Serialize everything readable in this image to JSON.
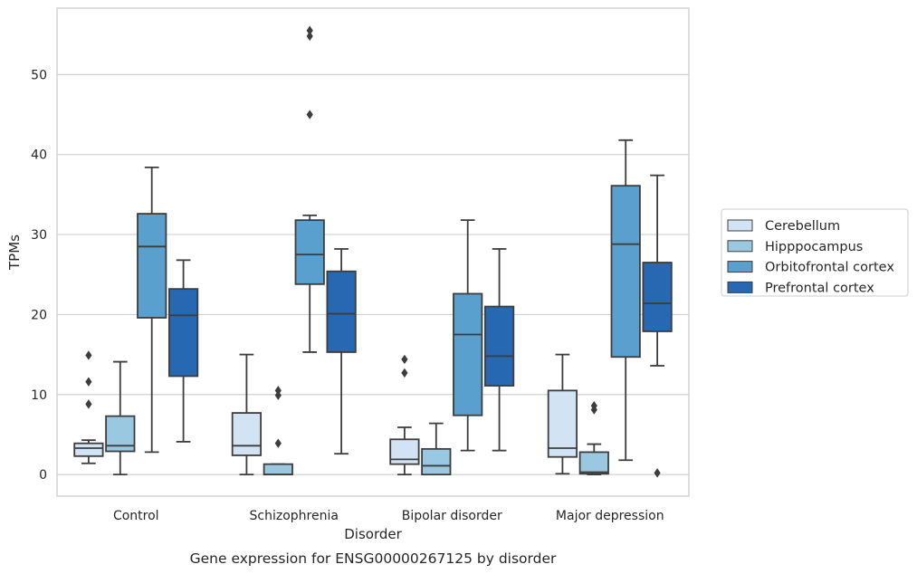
{
  "chart_data": {
    "type": "box",
    "caption": "Gene expression for ENSG00000267125 by disorder",
    "xlabel": "Disorder",
    "ylabel": "TPMs",
    "ylim": [
      -2.7,
      58.3
    ],
    "yticks": [
      0,
      10,
      20,
      30,
      40,
      50
    ],
    "grid": true,
    "legend_position": "right",
    "categories": [
      "Control",
      "Schizophrenia",
      "Bipolar disorder",
      "Major depression"
    ],
    "series": [
      {
        "name": "Cerebellum",
        "color": "#d2e3f3",
        "boxes": [
          {
            "whislo": 1.4,
            "q1": 2.3,
            "med": 3.3,
            "q3": 3.9,
            "whishi": 4.3,
            "fliers": [
              8.8,
              11.6,
              14.9
            ]
          },
          {
            "whislo": 0.0,
            "q1": 2.4,
            "med": 3.6,
            "q3": 7.7,
            "whishi": 15.0,
            "fliers": []
          },
          {
            "whislo": 0.0,
            "q1": 1.3,
            "med": 1.9,
            "q3": 4.4,
            "whishi": 5.9,
            "fliers": [
              12.7,
              14.4
            ]
          },
          {
            "whislo": 0.1,
            "q1": 2.2,
            "med": 3.3,
            "q3": 10.5,
            "whishi": 15.0,
            "fliers": []
          }
        ]
      },
      {
        "name": "Hipppocampus",
        "color": "#9ac8e0",
        "boxes": [
          {
            "whislo": 0.0,
            "q1": 2.9,
            "med": 3.6,
            "q3": 7.3,
            "whishi": 14.1,
            "fliers": []
          },
          {
            "whislo": 0.0,
            "q1": 0.0,
            "med": 0.0,
            "q3": 1.3,
            "whishi": 1.3,
            "fliers": [
              3.9,
              9.9,
              10.5
            ]
          },
          {
            "whislo": 0.0,
            "q1": 0.0,
            "med": 1.1,
            "q3": 3.2,
            "whishi": 6.4,
            "fliers": []
          },
          {
            "whislo": 0.0,
            "q1": 0.1,
            "med": 0.3,
            "q3": 2.8,
            "whishi": 3.8,
            "fliers": [
              8.1,
              8.6
            ]
          }
        ]
      },
      {
        "name": "Orbitofrontal cortex",
        "color": "#5aa0ce",
        "boxes": [
          {
            "whislo": 2.8,
            "q1": 19.6,
            "med": 28.5,
            "q3": 32.6,
            "whishi": 38.4,
            "fliers": []
          },
          {
            "whislo": 15.3,
            "q1": 23.8,
            "med": 27.5,
            "q3": 31.8,
            "whishi": 32.4,
            "fliers": [
              45.0,
              54.8,
              55.5
            ]
          },
          {
            "whislo": 3.0,
            "q1": 7.4,
            "med": 17.5,
            "q3": 22.6,
            "whishi": 31.8,
            "fliers": []
          },
          {
            "whislo": 1.8,
            "q1": 14.7,
            "med": 28.8,
            "q3": 36.1,
            "whishi": 41.8,
            "fliers": []
          }
        ]
      },
      {
        "name": "Prefrontal cortex",
        "color": "#2668b1",
        "boxes": [
          {
            "whislo": 4.1,
            "q1": 12.3,
            "med": 19.9,
            "q3": 23.2,
            "whishi": 26.8,
            "fliers": []
          },
          {
            "whislo": 2.6,
            "q1": 15.3,
            "med": 20.1,
            "q3": 25.4,
            "whishi": 28.2,
            "fliers": []
          },
          {
            "whislo": 3.0,
            "q1": 11.1,
            "med": 14.8,
            "q3": 21.0,
            "whishi": 28.2,
            "fliers": []
          },
          {
            "whislo": 13.6,
            "q1": 17.9,
            "med": 21.4,
            "q3": 26.5,
            "whishi": 37.4,
            "fliers": [
              0.2
            ]
          }
        ]
      }
    ]
  }
}
